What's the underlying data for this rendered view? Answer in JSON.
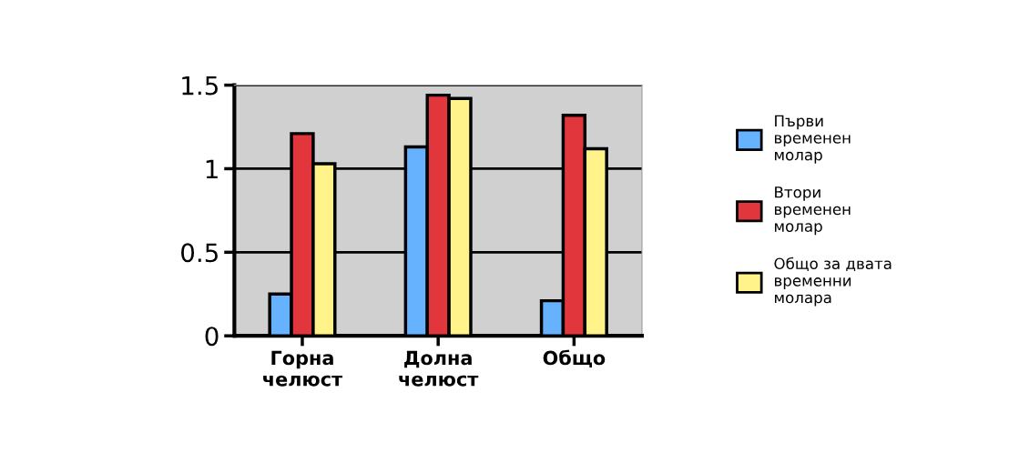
{
  "chart_data": {
    "type": "bar",
    "categories": [
      "Горна\nчелюст",
      "Долна\nчелюст",
      "Общо"
    ],
    "series": [
      {
        "name": "Първи\nвременен\nмолар",
        "color": "#66b2ff",
        "values": [
          0.25,
          1.13,
          0.21
        ]
      },
      {
        "name": "Втори\nвременен\nмолар",
        "color": "#e0363c",
        "values": [
          1.21,
          1.44,
          1.32
        ]
      },
      {
        "name": "Общо за двата\nвременни\nмолара",
        "color": "#fff38a",
        "values": [
          1.03,
          1.42,
          1.12
        ]
      }
    ],
    "ylim": [
      0,
      1.5
    ],
    "yticks": [
      0,
      0.5,
      1,
      1.5
    ],
    "grid": "y",
    "legend": "right"
  }
}
